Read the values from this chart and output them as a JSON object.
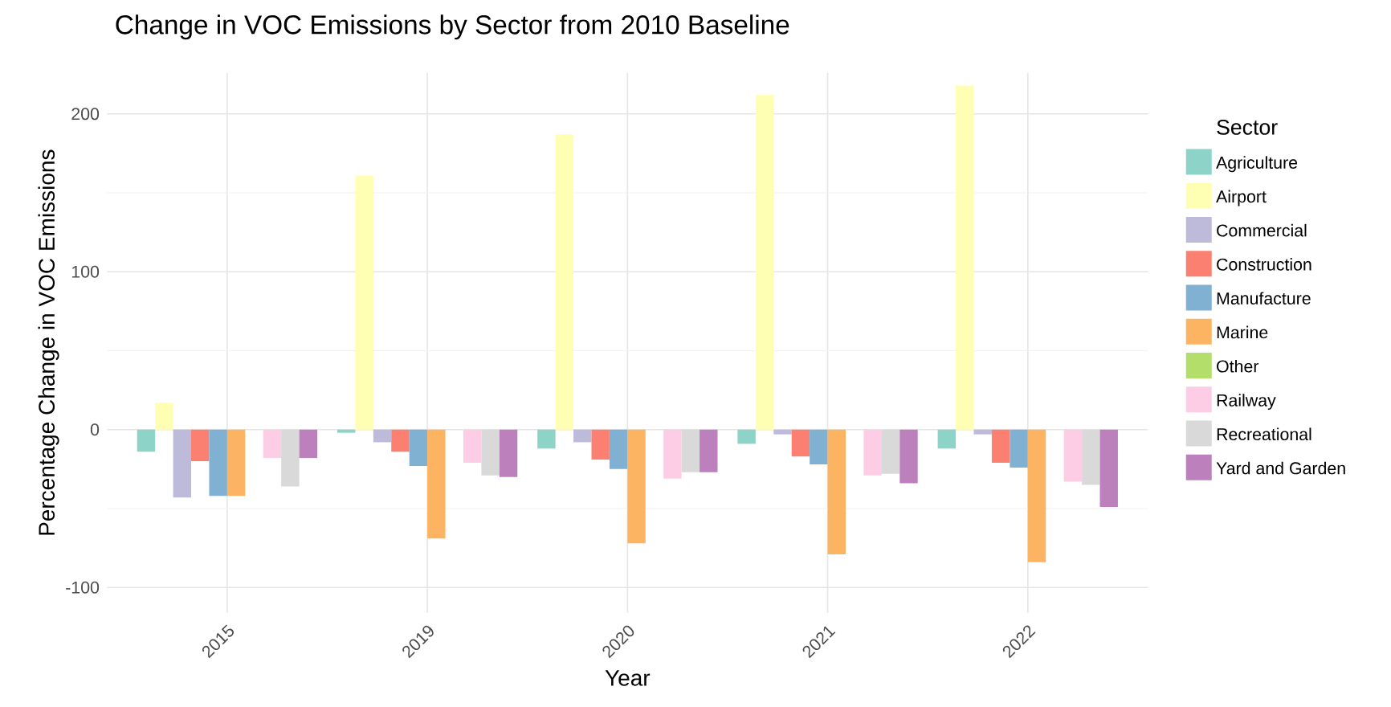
{
  "chart_data": {
    "type": "bar",
    "title": "Change in VOC Emissions by Sector from 2010 Baseline",
    "xlabel": "Year",
    "ylabel": "Percentage Change in VOC Emissions",
    "legend_title": "Sector",
    "categories": [
      "2015",
      "2019",
      "2020",
      "2021",
      "2022"
    ],
    "series": [
      {
        "name": "Agriculture",
        "color": "#8dd3c7",
        "values": [
          -14,
          -2,
          -12,
          -9,
          -12
        ]
      },
      {
        "name": "Airport",
        "color": "#ffffb3",
        "values": [
          17,
          161,
          187,
          212,
          218
        ]
      },
      {
        "name": "Commercial",
        "color": "#bebada",
        "values": [
          -43,
          -8,
          -8,
          -3,
          -3
        ]
      },
      {
        "name": "Construction",
        "color": "#fb8072",
        "values": [
          -20,
          -14,
          -19,
          -17,
          -21
        ]
      },
      {
        "name": "Manufacture",
        "color": "#80b1d3",
        "values": [
          -42,
          -23,
          -25,
          -22,
          -24
        ]
      },
      {
        "name": "Marine",
        "color": "#fdb462",
        "values": [
          -42,
          -69,
          -72,
          -79,
          -84
        ]
      },
      {
        "name": "Other",
        "color": "#b3de69",
        "values": [
          null,
          null,
          null,
          null,
          null
        ]
      },
      {
        "name": "Railway",
        "color": "#fccde5",
        "values": [
          -18,
          -21,
          -31,
          -29,
          -33
        ]
      },
      {
        "name": "Recreational",
        "color": "#d9d9d9",
        "values": [
          -36,
          -29,
          -27,
          -28,
          -35
        ]
      },
      {
        "name": "Yard and Garden",
        "color": "#bc80bd",
        "values": [
          -18,
          -30,
          -27,
          -34,
          -49
        ]
      }
    ],
    "ylim": [
      -116,
      226
    ],
    "yticks": [
      -100,
      0,
      100,
      200
    ],
    "grid": true,
    "legend": "right"
  }
}
